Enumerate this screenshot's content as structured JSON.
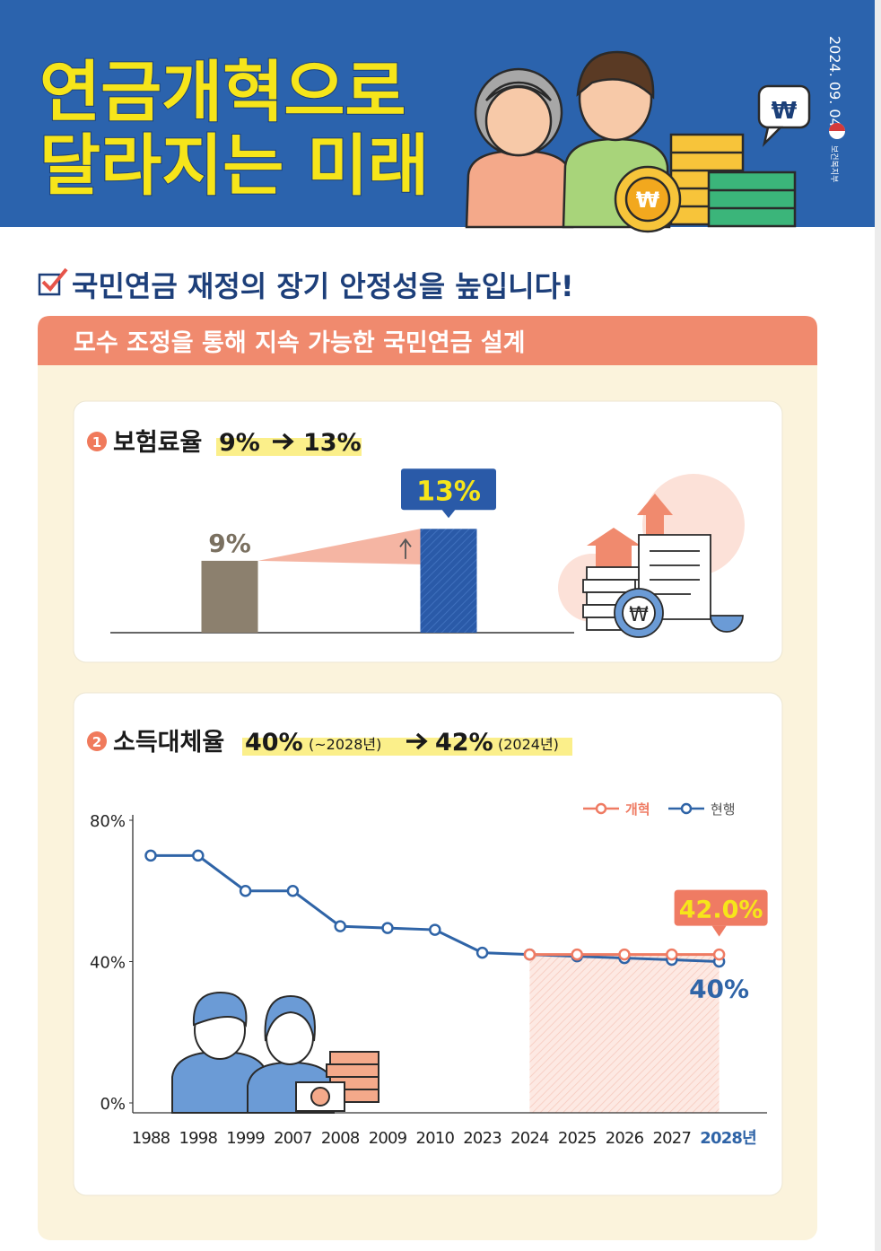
{
  "header": {
    "title_lines": [
      "연금개혁으로",
      "달라지는 미래"
    ],
    "date": "2024. 09. 04.",
    "ministry": "보건복지부"
  },
  "headline": "국민연금 재정의 장기 안정성을 높입니다!",
  "banner": "모수 조정을 통해 지속 가능한 국민연금 설계",
  "chart_data": [
    {
      "type": "bar",
      "number": "1",
      "title": "보험료율",
      "title_from": "9%",
      "title_to": "13%",
      "categories": [
        null,
        null
      ],
      "values": [
        9,
        13
      ],
      "value_labels": [
        "9%",
        "13%"
      ],
      "colors": [
        "#8c806e",
        "#2a5aa8"
      ]
    },
    {
      "type": "line",
      "number": "2",
      "title": "소득대체율",
      "title_from": "40%",
      "title_from_note": "(~2028년)",
      "title_to": "42%",
      "title_to_note": "(2024년)",
      "categories": [
        "1988",
        "1998",
        "1999",
        "2007",
        "2008",
        "2009",
        "2010",
        "2023",
        "2024",
        "2025",
        "2026",
        "2027",
        "2028년"
      ],
      "series": [
        {
          "name": "개혁",
          "color": "#ef7b63",
          "values": [
            null,
            null,
            null,
            null,
            null,
            null,
            null,
            null,
            42,
            42,
            42,
            42,
            42
          ],
          "value_labels": [
            null,
            null,
            null,
            null,
            null,
            null,
            null,
            null,
            null,
            null,
            null,
            null,
            "42.0%"
          ]
        },
        {
          "name": "현행",
          "color": "#2f64a7",
          "values": [
            70,
            70,
            60,
            60,
            50,
            49.5,
            49,
            42.5,
            42,
            41.5,
            41,
            40.5,
            40
          ],
          "value_labels": [
            null,
            null,
            null,
            null,
            null,
            null,
            null,
            null,
            null,
            null,
            null,
            null,
            "40%"
          ]
        }
      ],
      "ylim": [
        0,
        80
      ],
      "yticks": [
        {
          "value": 0,
          "label": "0%"
        },
        {
          "value": 40,
          "label": "40%"
        },
        {
          "value": 80,
          "label": "80%"
        }
      ],
      "legend": "top-right"
    }
  ]
}
